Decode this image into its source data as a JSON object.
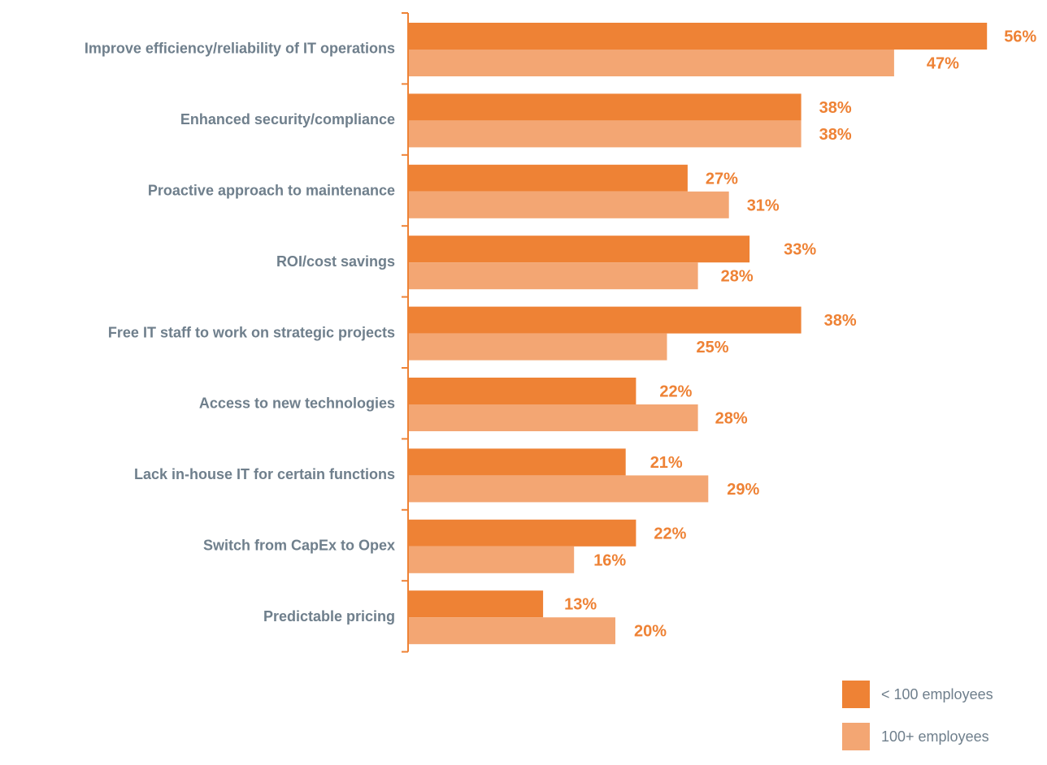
{
  "chart_data": {
    "type": "bar",
    "orientation": "horizontal",
    "categories": [
      "Improve efficiency/reliability of IT operations",
      "Enhanced security/compliance",
      "Proactive approach to maintenance",
      "ROI/cost savings",
      "Free IT staff to work on strategic projects",
      "Access to new technologies",
      "Lack in-house IT for certain functions",
      "Switch from CapEx to Opex",
      "Predictable pricing"
    ],
    "series": [
      {
        "name": "< 100 employees",
        "color": "#ee8235",
        "values": [
          56,
          38,
          27,
          33,
          38,
          22,
          21,
          22,
          13
        ]
      },
      {
        "name": "100+ employees",
        "color": "#f3a673",
        "values": [
          47,
          38,
          31,
          28,
          25,
          28,
          29,
          16,
          20
        ]
      }
    ],
    "value_suffix": "%",
    "label_color": "#ee8235",
    "axis_color": "#ee8235",
    "grid": false,
    "legend_position": "bottom-right"
  }
}
